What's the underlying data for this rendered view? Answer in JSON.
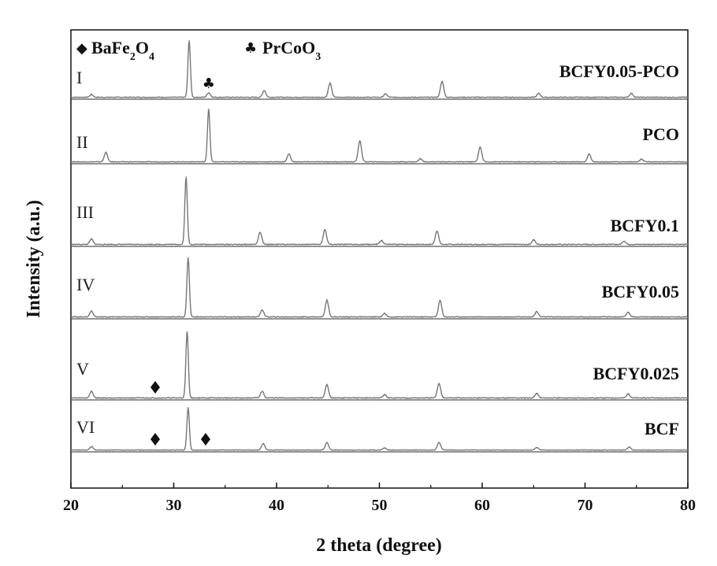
{
  "chart_data": {
    "type": "line",
    "xlabel": "2 theta (degree)",
    "ylabel": "Intensity (a.u.)",
    "xlim": [
      20,
      80
    ],
    "xticks": [
      20,
      30,
      40,
      50,
      60,
      70,
      80
    ],
    "legend": [
      {
        "symbol": "diamond",
        "glyph": "◆",
        "label": "BaFe",
        "sub1": "2",
        "label2": "O",
        "sub2": "4"
      },
      {
        "symbol": "club",
        "glyph": "♣",
        "label": "PrCoO",
        "sub1": "3"
      }
    ],
    "series": [
      {
        "roman": "I",
        "name": "BCFY0.05-PCO",
        "peaks": [
          [
            22.0,
            0.05
          ],
          [
            31.5,
            1.0
          ],
          [
            33.4,
            0.08
          ],
          [
            38.8,
            0.12
          ],
          [
            45.2,
            0.25
          ],
          [
            50.6,
            0.06
          ],
          [
            56.1,
            0.28
          ],
          [
            65.5,
            0.07
          ],
          [
            74.5,
            0.07
          ]
        ],
        "markers": [
          {
            "x": 33.4,
            "symbol": "club"
          }
        ]
      },
      {
        "roman": "II",
        "name": "PCO",
        "peaks": [
          [
            23.4,
            0.18
          ],
          [
            33.4,
            1.0
          ],
          [
            41.2,
            0.15
          ],
          [
            48.1,
            0.4
          ],
          [
            54.0,
            0.06
          ],
          [
            59.8,
            0.28
          ],
          [
            70.4,
            0.15
          ],
          [
            75.5,
            0.05
          ]
        ],
        "markers": []
      },
      {
        "roman": "III",
        "name": "BCFY0.1",
        "peaks": [
          [
            22.0,
            0.08
          ],
          [
            31.2,
            1.0
          ],
          [
            38.4,
            0.18
          ],
          [
            44.7,
            0.22
          ],
          [
            50.2,
            0.06
          ],
          [
            55.6,
            0.2
          ],
          [
            65.0,
            0.07
          ],
          [
            73.8,
            0.05
          ]
        ],
        "markers": []
      },
      {
        "roman": "IV",
        "name": "BCFY0.05",
        "peaks": [
          [
            22.0,
            0.1
          ],
          [
            31.4,
            1.0
          ],
          [
            38.6,
            0.12
          ],
          [
            44.9,
            0.28
          ],
          [
            50.5,
            0.06
          ],
          [
            55.9,
            0.28
          ],
          [
            65.3,
            0.09
          ],
          [
            74.2,
            0.08
          ]
        ],
        "markers": []
      },
      {
        "roman": "V",
        "name": "BCFY0.025",
        "peaks": [
          [
            22.0,
            0.1
          ],
          [
            31.3,
            1.0
          ],
          [
            38.6,
            0.1
          ],
          [
            44.9,
            0.2
          ],
          [
            50.5,
            0.05
          ],
          [
            55.8,
            0.22
          ],
          [
            65.3,
            0.07
          ],
          [
            74.2,
            0.06
          ]
        ],
        "markers": [
          {
            "x": 28.2,
            "symbol": "diamond"
          }
        ]
      },
      {
        "roman": "VI",
        "name": "BCF",
        "peaks": [
          [
            22.0,
            0.08
          ],
          [
            31.4,
            1.0
          ],
          [
            38.7,
            0.15
          ],
          [
            44.9,
            0.18
          ],
          [
            50.5,
            0.05
          ],
          [
            55.8,
            0.18
          ],
          [
            65.3,
            0.06
          ],
          [
            74.3,
            0.07
          ]
        ],
        "markers": [
          {
            "x": 28.2,
            "symbol": "diamond"
          },
          {
            "x": 33.1,
            "symbol": "diamond"
          }
        ]
      }
    ]
  }
}
